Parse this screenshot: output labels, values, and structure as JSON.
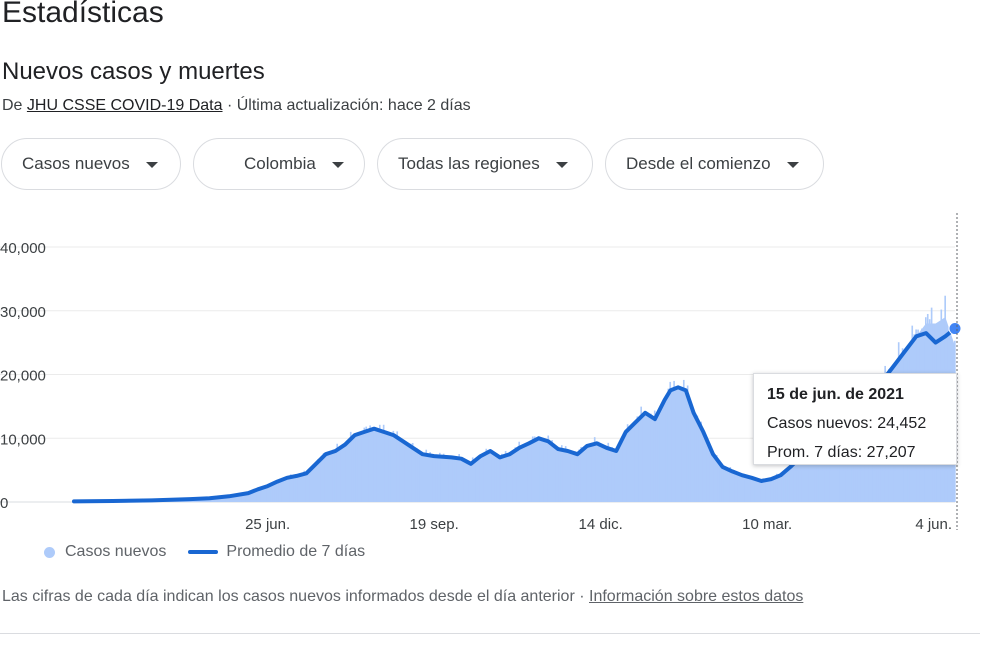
{
  "header": {
    "title": "Estadísticas",
    "section_title": "Nuevos casos y muertes",
    "source_prefix": "De",
    "source_link": "JHU CSSE COVID-19 Data",
    "updated": "· Última actualización: hace 2 días"
  },
  "filters": [
    {
      "label": "Casos nuevos"
    },
    {
      "label": "Colombia",
      "flag_colors": [
        "#FCD116",
        "#003893",
        "#CE1126"
      ]
    },
    {
      "label": "Todas las regiones"
    },
    {
      "label": "Desde el comienzo"
    }
  ],
  "tooltip": {
    "date": "15 de jun. de 2021",
    "cases": "Casos nuevos: 24,452",
    "avg": "Prom. 7 días: 27,207"
  },
  "legend": {
    "bars": "Casos nuevos",
    "line": "Promedio de 7 días"
  },
  "footer": {
    "note": "Las cifras de cada día indican los casos nuevos informados desde el día anterior  · ",
    "link": "Información sobre estos datos"
  },
  "colors": {
    "bars": "#aecbfa",
    "line": "#1967d2",
    "grid": "#ebebeb",
    "axis_text": "#3c4043"
  },
  "chart_data": {
    "type": "bar",
    "title": "Nuevos casos y muertes",
    "xlabel": "",
    "ylabel": "",
    "ylim": [
      0,
      40000
    ],
    "y_ticks": [
      0,
      10000,
      20000,
      30000,
      40000
    ],
    "y_tick_labels": [
      "0",
      "10,000",
      "20,000",
      "30,000",
      "40,000"
    ],
    "x_tick_labels": [
      "25 jun.",
      "19 sep.",
      "14 dic.",
      "10 mar.",
      "4 jun."
    ],
    "x_tick_days": [
      100,
      186,
      272,
      358,
      444
    ],
    "x_range_days": [
      0,
      455
    ],
    "grid": true,
    "legend_position": "bottom-left",
    "series": [
      {
        "name": "Casos nuevos",
        "kind": "bar",
        "points": [
          [
            0,
            100
          ],
          [
            20,
            150
          ],
          [
            40,
            250
          ],
          [
            60,
            450
          ],
          [
            70,
            600
          ],
          [
            80,
            900
          ],
          [
            90,
            1400
          ],
          [
            95,
            2000
          ],
          [
            100,
            2500
          ],
          [
            105,
            3200
          ],
          [
            110,
            3800
          ],
          [
            115,
            4100
          ],
          [
            120,
            4500
          ],
          [
            125,
            6000
          ],
          [
            130,
            7500
          ],
          [
            135,
            8000
          ],
          [
            140,
            9000
          ],
          [
            145,
            10500
          ],
          [
            150,
            11000
          ],
          [
            155,
            11500
          ],
          [
            160,
            11000
          ],
          [
            165,
            10500
          ],
          [
            170,
            9500
          ],
          [
            175,
            8500
          ],
          [
            180,
            7500
          ],
          [
            186,
            7200
          ],
          [
            195,
            7000
          ],
          [
            200,
            6800
          ],
          [
            205,
            6000
          ],
          [
            210,
            7200
          ],
          [
            215,
            8000
          ],
          [
            220,
            7000
          ],
          [
            225,
            7500
          ],
          [
            230,
            8500
          ],
          [
            235,
            9200
          ],
          [
            240,
            10000
          ],
          [
            245,
            9500
          ],
          [
            250,
            8300
          ],
          [
            255,
            8000
          ],
          [
            260,
            7500
          ],
          [
            265,
            8800
          ],
          [
            270,
            9200
          ],
          [
            275,
            8500
          ],
          [
            280,
            8000
          ],
          [
            285,
            11000
          ],
          [
            290,
            12500
          ],
          [
            295,
            14000
          ],
          [
            300,
            13000
          ],
          [
            305,
            16000
          ],
          [
            308,
            17500
          ],
          [
            312,
            18000
          ],
          [
            316,
            17500
          ],
          [
            320,
            14000
          ],
          [
            325,
            11000
          ],
          [
            330,
            7500
          ],
          [
            335,
            5500
          ],
          [
            340,
            4800
          ],
          [
            345,
            4200
          ],
          [
            350,
            3800
          ],
          [
            355,
            3300
          ],
          [
            360,
            3600
          ],
          [
            365,
            4200
          ],
          [
            370,
            5500
          ],
          [
            375,
            7000
          ],
          [
            380,
            8500
          ],
          [
            385,
            10500
          ],
          [
            390,
            12500
          ],
          [
            395,
            13500
          ],
          [
            400,
            14500
          ],
          [
            405,
            14000
          ],
          [
            410,
            16000
          ],
          [
            415,
            18000
          ],
          [
            420,
            20000
          ],
          [
            425,
            22000
          ],
          [
            430,
            24000
          ],
          [
            435,
            26000
          ],
          [
            440,
            28000
          ],
          [
            445,
            28000
          ],
          [
            450,
            29000
          ],
          [
            455,
            24452
          ]
        ]
      },
      {
        "name": "Promedio de 7 días",
        "kind": "line",
        "points": [
          [
            0,
            100
          ],
          [
            20,
            150
          ],
          [
            40,
            250
          ],
          [
            60,
            450
          ],
          [
            70,
            600
          ],
          [
            80,
            900
          ],
          [
            90,
            1400
          ],
          [
            95,
            2000
          ],
          [
            100,
            2500
          ],
          [
            105,
            3200
          ],
          [
            110,
            3800
          ],
          [
            115,
            4100
          ],
          [
            120,
            4500
          ],
          [
            125,
            6000
          ],
          [
            130,
            7500
          ],
          [
            135,
            8000
          ],
          [
            140,
            9000
          ],
          [
            145,
            10500
          ],
          [
            150,
            11000
          ],
          [
            155,
            11500
          ],
          [
            160,
            11000
          ],
          [
            165,
            10500
          ],
          [
            170,
            9500
          ],
          [
            175,
            8500
          ],
          [
            180,
            7500
          ],
          [
            186,
            7200
          ],
          [
            195,
            7000
          ],
          [
            200,
            6800
          ],
          [
            205,
            6000
          ],
          [
            210,
            7200
          ],
          [
            215,
            8000
          ],
          [
            220,
            7000
          ],
          [
            225,
            7500
          ],
          [
            230,
            8500
          ],
          [
            235,
            9200
          ],
          [
            240,
            10000
          ],
          [
            245,
            9500
          ],
          [
            250,
            8300
          ],
          [
            255,
            8000
          ],
          [
            260,
            7500
          ],
          [
            265,
            8800
          ],
          [
            270,
            9200
          ],
          [
            275,
            8500
          ],
          [
            280,
            8000
          ],
          [
            285,
            11000
          ],
          [
            290,
            12500
          ],
          [
            295,
            14000
          ],
          [
            300,
            13000
          ],
          [
            305,
            16000
          ],
          [
            308,
            17500
          ],
          [
            312,
            18000
          ],
          [
            316,
            17500
          ],
          [
            320,
            14000
          ],
          [
            325,
            11000
          ],
          [
            330,
            7500
          ],
          [
            335,
            5500
          ],
          [
            340,
            4800
          ],
          [
            345,
            4200
          ],
          [
            350,
            3800
          ],
          [
            355,
            3300
          ],
          [
            360,
            3600
          ],
          [
            365,
            4200
          ],
          [
            370,
            5500
          ],
          [
            375,
            7000
          ],
          [
            380,
            8500
          ],
          [
            385,
            10500
          ],
          [
            390,
            12500
          ],
          [
            395,
            13500
          ],
          [
            400,
            14500
          ],
          [
            405,
            14000
          ],
          [
            410,
            16000
          ],
          [
            415,
            18000
          ],
          [
            420,
            20000
          ],
          [
            425,
            22000
          ],
          [
            430,
            24000
          ],
          [
            435,
            26000
          ],
          [
            440,
            26500
          ],
          [
            445,
            25000
          ],
          [
            450,
            26000
          ],
          [
            455,
            27207
          ]
        ]
      }
    ],
    "highlight": {
      "day": 455,
      "cases": 24452,
      "avg": 27207
    }
  }
}
